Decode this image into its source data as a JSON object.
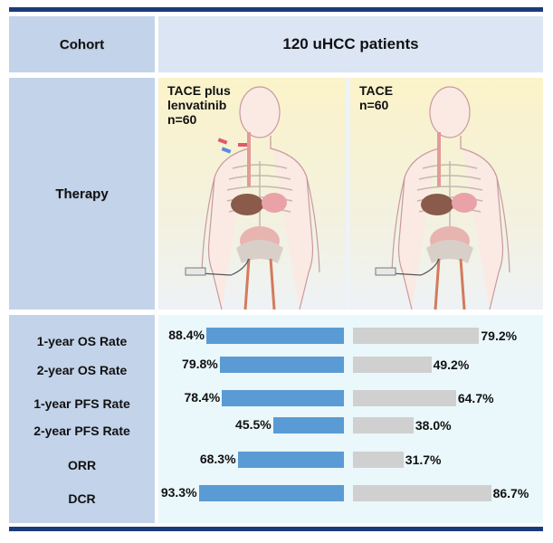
{
  "header": {
    "cohort_label": "Cohort",
    "cohort_value": "120 uHCC patients"
  },
  "therapy": {
    "label": "Therapy",
    "arm_a": {
      "lines": [
        "TACE plus",
        "lenvatinib",
        "n=60"
      ]
    },
    "arm_b": {
      "lines": [
        "TACE",
        "n=60"
      ]
    }
  },
  "chart_data": {
    "type": "bar",
    "orientation": "horizontal",
    "categories": [
      "1-year OS Rate",
      "2-year OS Rate",
      "1-year PFS Rate",
      "2-year PFS Rate",
      "ORR",
      "DCR"
    ],
    "series": [
      {
        "name": "TACE plus lenvatinib",
        "color": "#5b9bd5",
        "direction": "right-aligned",
        "values": [
          88.4,
          79.8,
          78.4,
          45.5,
          68.3,
          93.3
        ],
        "labels": [
          "88.4%",
          "79.8%",
          "78.4%",
          "45.5%",
          "68.3%",
          "93.3%"
        ]
      },
      {
        "name": "TACE",
        "color": "#d0d0d0",
        "direction": "left-aligned",
        "values": [
          79.2,
          49.2,
          64.7,
          38.0,
          31.7,
          86.7
        ],
        "labels": [
          "79.2%",
          "49.2%",
          "64.7%",
          "38.0%",
          "31.7%",
          "86.7%"
        ]
      }
    ],
    "xlim": [
      0,
      100
    ]
  }
}
